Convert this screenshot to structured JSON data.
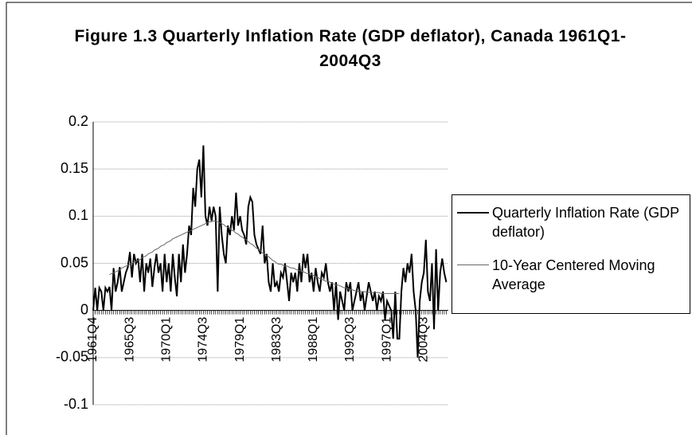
{
  "chart_data": {
    "type": "line",
    "title": "Figure 1.3 Quarterly Inflation Rate (GDP deflator), Canada 1961Q1-2004Q3",
    "categories": [
      "1961Q4",
      null,
      null,
      null,
      null,
      null,
      null,
      null,
      null,
      null,
      null,
      null,
      null,
      null,
      null,
      null,
      null,
      null,
      "1965Q3",
      null,
      null,
      null,
      null,
      null,
      null,
      null,
      null,
      null,
      null,
      null,
      null,
      null,
      null,
      null,
      null,
      null,
      "1970Q1",
      null,
      null,
      null,
      null,
      null,
      null,
      null,
      null,
      null,
      null,
      null,
      null,
      null,
      null,
      null,
      null,
      null,
      "1974Q3",
      null,
      null,
      null,
      null,
      null,
      null,
      null,
      null,
      null,
      null,
      null,
      null,
      null,
      null,
      null,
      null,
      null,
      "1979Q1",
      null,
      null,
      null,
      null,
      null,
      null,
      null,
      null,
      null,
      null,
      null,
      null,
      null,
      null,
      null,
      null,
      null,
      "1983Q3",
      null,
      null,
      null,
      null,
      null,
      null,
      null,
      null,
      null,
      null,
      null,
      null,
      null,
      null,
      null,
      null,
      null,
      "1988Q1",
      null,
      null,
      null,
      null,
      null,
      null,
      null,
      null,
      null,
      null,
      null,
      null,
      null,
      null,
      null,
      null,
      null,
      "1992Q3",
      null,
      null,
      null,
      null,
      null,
      null,
      null,
      null,
      null,
      null,
      null,
      null,
      null,
      null,
      null,
      null,
      null,
      "1997Q1",
      null,
      null,
      null,
      null,
      null,
      null,
      null,
      null,
      null,
      null,
      null,
      null,
      null,
      null,
      null,
      null,
      null,
      "2004Q3",
      null,
      null,
      null,
      null,
      null,
      null,
      null,
      null,
      null,
      null,
      null
    ],
    "series": [
      {
        "name": "Quarterly Inflation Rate (GDP deflator)",
        "color": "#000000",
        "width": 2,
        "values": [
          0.0,
          0.024,
          0.0,
          0.024,
          0.02,
          0.0,
          0.024,
          0.02,
          0.025,
          0.0,
          0.045,
          0.02,
          0.03,
          0.046,
          0.02,
          0.03,
          0.04,
          0.046,
          0.062,
          0.035,
          0.06,
          0.05,
          0.055,
          0.03,
          0.06,
          0.02,
          0.05,
          0.04,
          0.055,
          0.025,
          0.045,
          0.06,
          0.04,
          0.05,
          0.02,
          0.06,
          0.03,
          0.05,
          0.02,
          0.06,
          0.035,
          0.015,
          0.06,
          0.03,
          0.07,
          0.04,
          0.06,
          0.09,
          0.08,
          0.13,
          0.11,
          0.15,
          0.16,
          0.12,
          0.175,
          0.1,
          0.09,
          0.11,
          0.095,
          0.11,
          0.1,
          0.02,
          0.11,
          0.08,
          0.06,
          0.05,
          0.09,
          0.08,
          0.1,
          0.085,
          0.125,
          0.09,
          0.1,
          0.085,
          0.08,
          0.07,
          0.11,
          0.12,
          0.115,
          0.08,
          0.07,
          0.065,
          0.06,
          0.09,
          0.05,
          0.06,
          0.03,
          0.02,
          0.05,
          0.025,
          0.03,
          0.02,
          0.04,
          0.035,
          0.05,
          0.03,
          0.01,
          0.04,
          0.03,
          0.04,
          0.02,
          0.05,
          0.03,
          0.06,
          0.045,
          0.06,
          0.03,
          0.04,
          0.02,
          0.045,
          0.03,
          0.02,
          0.04,
          0.035,
          0.05,
          0.03,
          0.02,
          0.03,
          0.0,
          0.03,
          -0.01,
          0.02,
          0.01,
          0.0,
          0.03,
          0.02,
          0.03,
          0.0,
          0.01,
          0.02,
          0.03,
          0.01,
          0.02,
          0.0,
          0.015,
          0.03,
          0.02,
          0.01,
          0.02,
          0.0,
          0.015,
          0.01,
          0.02,
          -0.01,
          0.01,
          0.005,
          0.0,
          -0.03,
          0.02,
          -0.03,
          -0.03,
          0.02,
          0.045,
          0.03,
          0.05,
          0.04,
          0.06,
          0.02,
          0.0,
          -0.05,
          0.01,
          0.03,
          0.04,
          0.075,
          0.02,
          0.01,
          0.05,
          -0.02,
          0.065,
          0.0,
          0.04,
          0.055,
          0.04,
          0.03
        ]
      },
      {
        "name": "10-Year Centered Moving Average",
        "color": "#666666",
        "width": 1,
        "values": [
          null,
          null,
          null,
          null,
          null,
          null,
          null,
          null,
          0.038,
          0.039,
          0.04,
          0.041,
          0.042,
          0.043,
          0.045,
          0.046,
          0.047,
          0.048,
          0.049,
          0.05,
          0.051,
          0.052,
          0.053,
          0.054,
          0.056,
          0.057,
          0.058,
          0.06,
          0.061,
          0.062,
          0.064,
          0.065,
          0.066,
          0.068,
          0.069,
          0.07,
          0.072,
          0.073,
          0.074,
          0.076,
          0.077,
          0.078,
          0.079,
          0.08,
          0.081,
          0.082,
          0.083,
          0.084,
          0.085,
          0.086,
          0.087,
          0.088,
          0.089,
          0.09,
          0.091,
          0.092,
          0.093,
          0.094,
          0.094,
          0.095,
          0.095,
          0.094,
          0.093,
          0.092,
          0.091,
          0.089,
          0.088,
          0.087,
          0.085,
          0.084,
          0.082,
          0.081,
          0.079,
          0.078,
          0.076,
          0.075,
          0.073,
          0.071,
          0.07,
          0.068,
          0.066,
          0.065,
          0.063,
          0.061,
          0.06,
          0.058,
          0.057,
          0.055,
          0.053,
          0.052,
          0.05,
          0.049,
          0.049,
          0.048,
          0.047,
          0.047,
          0.046,
          0.045,
          0.045,
          0.044,
          0.043,
          0.042,
          0.042,
          0.041,
          0.04,
          0.039,
          0.039,
          0.038,
          0.037,
          0.036,
          0.035,
          0.034,
          0.033,
          0.032,
          0.031,
          0.031,
          0.03,
          0.029,
          0.028,
          0.027,
          0.027,
          0.026,
          0.025,
          0.024,
          0.024,
          0.023,
          0.022,
          0.022,
          0.021,
          0.021,
          0.02,
          0.02,
          0.02,
          0.02,
          0.019,
          0.019,
          0.019,
          0.019,
          0.019,
          0.019,
          0.019,
          0.018,
          0.018,
          0.018,
          0.018,
          0.018,
          0.018,
          0.018,
          0.018,
          0.018,
          0.018,
          null,
          null,
          null,
          null,
          null,
          null,
          null,
          null,
          null,
          null,
          null,
          null,
          null,
          null,
          null,
          null,
          null,
          null,
          null,
          null,
          null,
          null,
          null
        ]
      }
    ],
    "ylim": [
      -0.1,
      0.2
    ],
    "yticks": [
      -0.1,
      -0.05,
      0,
      0.05,
      0.1,
      0.15,
      0.2
    ],
    "grid": true
  }
}
